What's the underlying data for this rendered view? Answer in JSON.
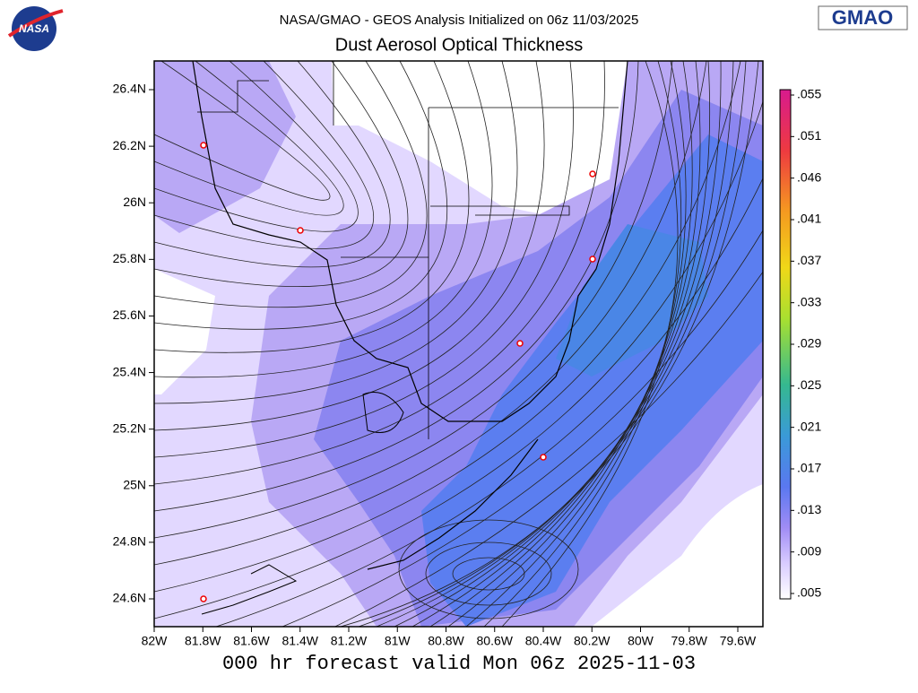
{
  "header": {
    "line1": "NASA/GMAO - GEOS Analysis Initialized on 06z 11/03/2025",
    "line2": "Dust Aerosol Optical Thickness"
  },
  "logos": {
    "left": "NASA",
    "right": "GMAO"
  },
  "map": {
    "lon_labels": [
      "82W",
      "81.8W",
      "81.6W",
      "81.4W",
      "81.2W",
      "81W",
      "80.8W",
      "80.6W",
      "80.4W",
      "80.2W",
      "80W",
      "79.8W",
      "79.6W"
    ],
    "lat_labels": [
      "26.4N",
      "26.2N",
      "26N",
      "25.8N",
      "25.6N",
      "25.4N",
      "25.2N",
      "25N",
      "24.8N",
      "24.6N"
    ]
  },
  "colorbar": {
    "labels": [
      ".055",
      ".051",
      ".046",
      ".041",
      ".037",
      ".033",
      ".029",
      ".025",
      ".021",
      ".017",
      ".013",
      ".009",
      ".005"
    ]
  },
  "footer": "000 hr forecast valid Mon 06z 2025-11-03"
}
